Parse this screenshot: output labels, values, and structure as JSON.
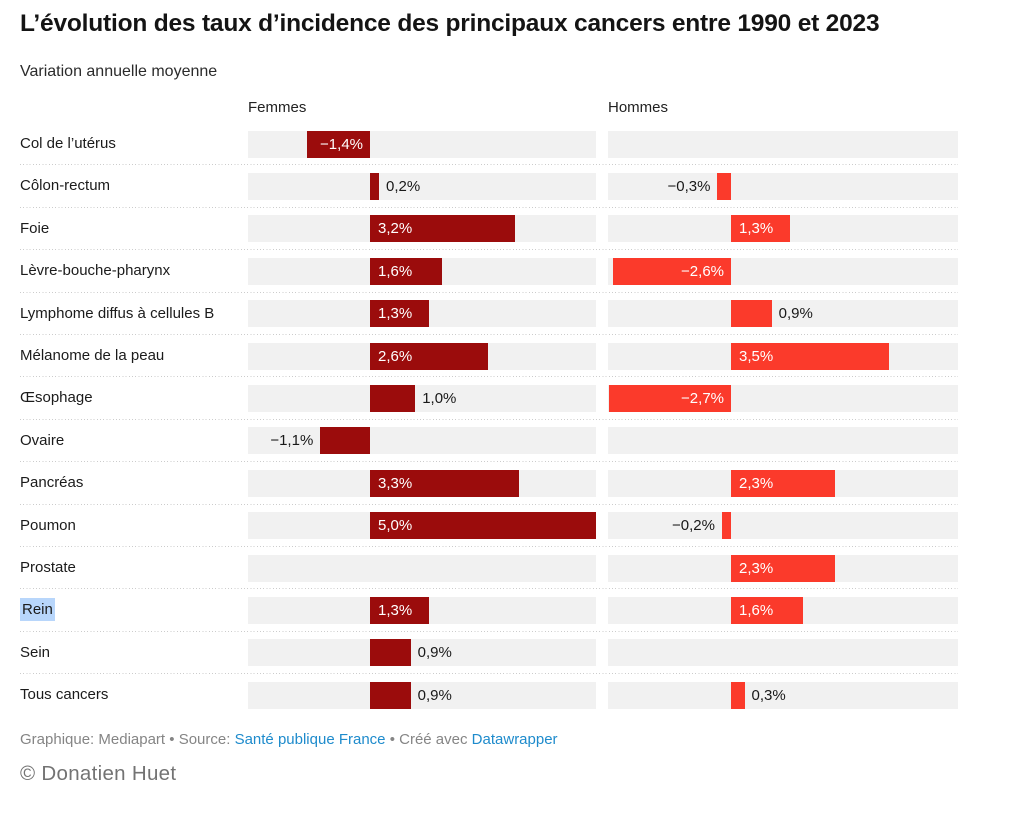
{
  "title": "L’évolution des taux d’incidence des principaux cancers entre 1990 et 2023",
  "subtitle": "Variation annuelle moyenne",
  "colors": {
    "bar_femmes": "#9b0c0c",
    "bar_hommes": "#fb3a2b",
    "track": "#f1f1f1",
    "separator": "#cccccc",
    "link_blue": "#1e8bcc",
    "text": "#191919",
    "muted_gray": "#858585",
    "selection_highlight": "#b8d6fb"
  },
  "footer": {
    "byline": "Graphique: Mediapart",
    "bullet": "•",
    "source_label": "Source:",
    "source_link": "Santé publique France",
    "created_label": "Créé avec",
    "created_link": "Datawrapper",
    "copyright": "© Donatien Huet"
  },
  "chart_data": {
    "type": "bar",
    "orientation": "horizontal",
    "title": "L’évolution des taux d’incidence des principaux cancers entre 1990 et 2023",
    "subtitle": "Variation annuelle moyenne",
    "unit": "%",
    "xlim": [
      -2.7,
      5.0
    ],
    "grid": false,
    "highlighted_category": "Rein",
    "categories": [
      "Col de l’utérus",
      "Côlon-rectum",
      "Foie",
      "Lèvre-bouche-pharynx",
      "Lymphome diffus à cellules B",
      "Mélanome de la peau",
      "Œsophage",
      "Ovaire",
      "Pancréas",
      "Poumon",
      "Prostate",
      "Rein",
      "Sein",
      "Tous cancers"
    ],
    "series": [
      {
        "name": "Femmes",
        "color": "#9b0c0c",
        "values": [
          -1.4,
          0.2,
          3.2,
          1.6,
          1.3,
          2.6,
          1.0,
          -1.1,
          3.3,
          5.0,
          null,
          1.3,
          0.9,
          0.9
        ],
        "display": [
          "−1,4%",
          "0,2%",
          "3,2%",
          "1,6%",
          "1,3%",
          "2,6%",
          "1,0%",
          "−1,1%",
          "3,3%",
          "5,0%",
          null,
          "1,3%",
          "0,9%",
          "0,9%"
        ],
        "label_placement": [
          "inside",
          "outside",
          "inside",
          "inside",
          "inside",
          "inside",
          "outside",
          "outside",
          "inside",
          "inside",
          null,
          "inside",
          "outside",
          "outside"
        ]
      },
      {
        "name": "Hommes",
        "color": "#fb3a2b",
        "values": [
          null,
          -0.3,
          1.3,
          -2.6,
          0.9,
          3.5,
          -2.7,
          null,
          2.3,
          -0.2,
          2.3,
          1.6,
          null,
          0.3
        ],
        "display": [
          null,
          "−0,3%",
          "1,3%",
          "−2,6%",
          "0,9%",
          "3,5%",
          "−2,7%",
          null,
          "2,3%",
          "−0,2%",
          "2,3%",
          "1,6%",
          null,
          "0,3%"
        ],
        "label_placement": [
          null,
          "outside",
          "inside",
          "inside",
          "outside",
          "inside",
          "inside",
          null,
          "inside",
          "outside",
          "inside",
          "inside",
          null,
          "outside"
        ]
      }
    ]
  }
}
